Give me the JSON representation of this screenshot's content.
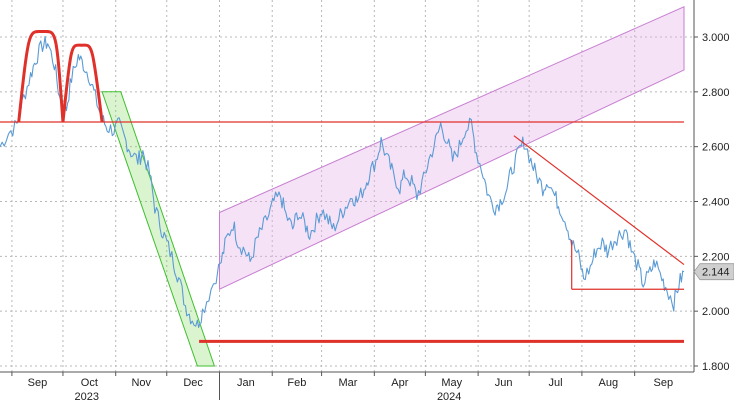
{
  "chart_data": {
    "type": "line",
    "title": "",
    "xlabel": "",
    "ylabel": "",
    "x_range": [
      "2023-08-25",
      "2024-09-30"
    ],
    "ylim": [
      1.8,
      3.1
    ],
    "grid": true,
    "y_ticks": [
      "1.800",
      "2.000",
      "2.200",
      "2.400",
      "2.600",
      "2.800",
      "3.000"
    ],
    "x_ticks": [
      {
        "label": "Sep",
        "date": "2023-09-01"
      },
      {
        "label": "Oct",
        "date": "2023-10-01"
      },
      {
        "label": "Nov",
        "date": "2023-11-01"
      },
      {
        "label": "Dec",
        "date": "2023-12-01"
      },
      {
        "label": "Jan",
        "date": "2024-01-01"
      },
      {
        "label": "Feb",
        "date": "2024-02-01"
      },
      {
        "label": "Mar",
        "date": "2024-03-01"
      },
      {
        "label": "Apr",
        "date": "2024-04-01"
      },
      {
        "label": "May",
        "date": "2024-05-01"
      },
      {
        "label": "Jun",
        "date": "2024-06-01"
      },
      {
        "label": "Jul",
        "date": "2024-07-01"
      },
      {
        "label": "Aug",
        "date": "2024-08-01"
      },
      {
        "label": "Sep",
        "date": "2024-09-01"
      }
    ],
    "year_labels": [
      {
        "label": "2023",
        "date": "2023-10-15"
      },
      {
        "label": "2024",
        "date": "2024-05-15"
      }
    ],
    "last_value": "2.144",
    "series": [
      {
        "color": "#5b9bd5",
        "points": [
          [
            "2023-08-25",
            2.6
          ],
          [
            "2023-08-30",
            2.65
          ],
          [
            "2023-09-04",
            2.68
          ],
          [
            "2023-09-08",
            2.78
          ],
          [
            "2023-09-12",
            2.86
          ],
          [
            "2023-09-15",
            2.92
          ],
          [
            "2023-09-19",
            2.97
          ],
          [
            "2023-09-22",
            2.98
          ],
          [
            "2023-09-26",
            2.9
          ],
          [
            "2023-09-29",
            2.78
          ],
          [
            "2023-10-03",
            2.74
          ],
          [
            "2023-10-06",
            2.85
          ],
          [
            "2023-10-10",
            2.93
          ],
          [
            "2023-10-13",
            2.9
          ],
          [
            "2023-10-17",
            2.85
          ],
          [
            "2023-10-20",
            2.78
          ],
          [
            "2023-10-24",
            2.7
          ],
          [
            "2023-10-27",
            2.67
          ],
          [
            "2023-10-31",
            2.66
          ],
          [
            "2023-11-03",
            2.68
          ],
          [
            "2023-11-07",
            2.62
          ],
          [
            "2023-11-10",
            2.58
          ],
          [
            "2023-11-14",
            2.55
          ],
          [
            "2023-11-17",
            2.58
          ],
          [
            "2023-11-21",
            2.5
          ],
          [
            "2023-11-24",
            2.38
          ],
          [
            "2023-11-28",
            2.3
          ],
          [
            "2023-12-01",
            2.25
          ],
          [
            "2023-12-05",
            2.18
          ],
          [
            "2023-12-08",
            2.12
          ],
          [
            "2023-12-12",
            2.02
          ],
          [
            "2023-12-15",
            1.98
          ],
          [
            "2023-12-19",
            1.95
          ],
          [
            "2023-12-22",
            2.0
          ],
          [
            "2023-12-27",
            2.08
          ],
          [
            "2024-01-02",
            2.18
          ],
          [
            "2024-01-05",
            2.26
          ],
          [
            "2024-01-09",
            2.32
          ],
          [
            "2024-01-12",
            2.25
          ],
          [
            "2024-01-16",
            2.22
          ],
          [
            "2024-01-19",
            2.18
          ],
          [
            "2024-01-23",
            2.26
          ],
          [
            "2024-01-26",
            2.3
          ],
          [
            "2024-01-30",
            2.35
          ],
          [
            "2024-02-02",
            2.4
          ],
          [
            "2024-02-06",
            2.42
          ],
          [
            "2024-02-09",
            2.35
          ],
          [
            "2024-02-13",
            2.3
          ],
          [
            "2024-02-16",
            2.36
          ],
          [
            "2024-02-20",
            2.32
          ],
          [
            "2024-02-23",
            2.28
          ],
          [
            "2024-02-27",
            2.33
          ],
          [
            "2024-03-01",
            2.37
          ],
          [
            "2024-03-05",
            2.33
          ],
          [
            "2024-03-08",
            2.3
          ],
          [
            "2024-03-12",
            2.35
          ],
          [
            "2024-03-15",
            2.38
          ],
          [
            "2024-03-19",
            2.42
          ],
          [
            "2024-03-22",
            2.4
          ],
          [
            "2024-03-26",
            2.45
          ],
          [
            "2024-03-29",
            2.5
          ],
          [
            "2024-04-02",
            2.55
          ],
          [
            "2024-04-05",
            2.62
          ],
          [
            "2024-04-09",
            2.55
          ],
          [
            "2024-04-12",
            2.5
          ],
          [
            "2024-04-16",
            2.45
          ],
          [
            "2024-04-19",
            2.5
          ],
          [
            "2024-04-23",
            2.47
          ],
          [
            "2024-04-26",
            2.42
          ],
          [
            "2024-04-30",
            2.48
          ],
          [
            "2024-05-03",
            2.55
          ],
          [
            "2024-05-07",
            2.62
          ],
          [
            "2024-05-10",
            2.68
          ],
          [
            "2024-05-14",
            2.62
          ],
          [
            "2024-05-17",
            2.55
          ],
          [
            "2024-05-21",
            2.6
          ],
          [
            "2024-05-24",
            2.66
          ],
          [
            "2024-05-28",
            2.68
          ],
          [
            "2024-05-31",
            2.58
          ],
          [
            "2024-06-04",
            2.5
          ],
          [
            "2024-06-07",
            2.42
          ],
          [
            "2024-06-11",
            2.38
          ],
          [
            "2024-06-14",
            2.4
          ],
          [
            "2024-06-18",
            2.45
          ],
          [
            "2024-06-21",
            2.52
          ],
          [
            "2024-06-25",
            2.58
          ],
          [
            "2024-06-28",
            2.62
          ],
          [
            "2024-07-02",
            2.55
          ],
          [
            "2024-07-05",
            2.5
          ],
          [
            "2024-07-09",
            2.45
          ],
          [
            "2024-07-12",
            2.48
          ],
          [
            "2024-07-16",
            2.42
          ],
          [
            "2024-07-19",
            2.38
          ],
          [
            "2024-07-23",
            2.32
          ],
          [
            "2024-07-26",
            2.25
          ],
          [
            "2024-07-30",
            2.2
          ],
          [
            "2024-08-02",
            2.12
          ],
          [
            "2024-08-06",
            2.16
          ],
          [
            "2024-08-09",
            2.22
          ],
          [
            "2024-08-13",
            2.25
          ],
          [
            "2024-08-16",
            2.22
          ],
          [
            "2024-08-20",
            2.26
          ],
          [
            "2024-08-23",
            2.28
          ],
          [
            "2024-08-27",
            2.3
          ],
          [
            "2024-08-30",
            2.22
          ],
          [
            "2024-09-03",
            2.16
          ],
          [
            "2024-09-06",
            2.1
          ],
          [
            "2024-09-10",
            2.14
          ],
          [
            "2024-09-13",
            2.18
          ],
          [
            "2024-09-17",
            2.12
          ],
          [
            "2024-09-20",
            2.08
          ],
          [
            "2024-09-24",
            2.03
          ],
          [
            "2024-09-27",
            2.1
          ],
          [
            "2024-09-30",
            2.144
          ]
        ]
      }
    ],
    "annotations": {
      "head_shoulders_bumps": [
        {
          "points": [
            [
              "2023-09-05",
              2.69
            ],
            [
              "2023-09-11",
              2.94
            ],
            [
              "2023-09-19",
              3.02
            ],
            [
              "2023-09-27",
              2.94
            ],
            [
              "2023-10-01",
              2.69
            ]
          ]
        },
        {
          "points": [
            [
              "2023-10-01",
              2.69
            ],
            [
              "2023-10-06",
              2.9
            ],
            [
              "2023-10-12",
              2.97
            ],
            [
              "2023-10-18",
              2.9
            ],
            [
              "2023-10-24",
              2.69
            ]
          ]
        }
      ],
      "neckline_top": {
        "y": 2.69,
        "x0": "2023-08-25",
        "x1": "2024-09-30"
      },
      "downtrend_channel": {
        "color": "#7ed957",
        "points": [
          [
            "2023-11-04",
            2.8
          ],
          [
            "2023-12-29",
            1.8
          ],
          [
            "2023-12-19",
            1.8
          ],
          [
            "2023-10-24",
            2.8
          ]
        ]
      },
      "uptrend_channel": {
        "color": "#e8b4e8",
        "points": [
          [
            "2024-01-01",
            2.36
          ],
          [
            "2024-09-30",
            3.11
          ],
          [
            "2024-09-30",
            2.88
          ],
          [
            "2024-01-01",
            2.08
          ]
        ]
      },
      "support_line": {
        "y": 1.89,
        "x0": "2023-12-20",
        "x1": "2024-09-30"
      },
      "triangle": {
        "top": [
          [
            "2024-06-22",
            2.64
          ],
          [
            "2024-09-30",
            2.17
          ]
        ],
        "bottom": [
          [
            "2024-07-26",
            2.08
          ],
          [
            "2024-09-30",
            2.08
          ]
        ],
        "left": [
          [
            "2024-07-26",
            2.08
          ],
          [
            "2024-07-26",
            2.26
          ]
        ]
      }
    }
  }
}
